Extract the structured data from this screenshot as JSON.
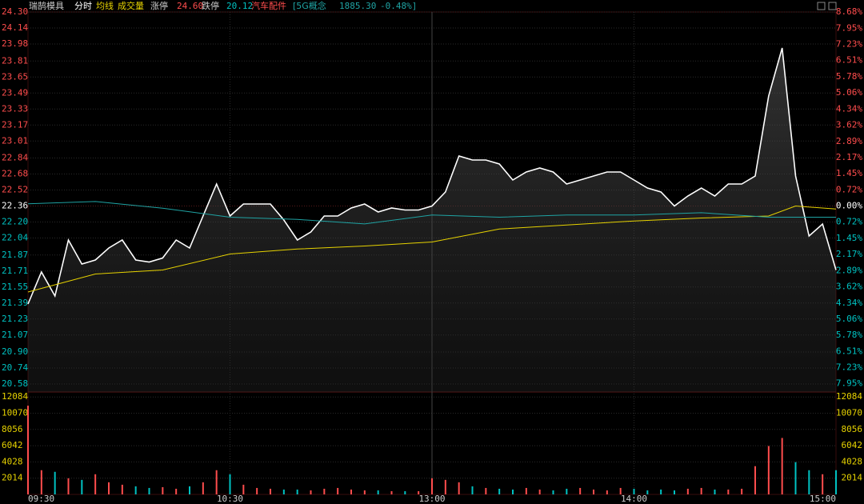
{
  "header": {
    "stock_name": "瑞鹄模具",
    "limit_up_label": "涨停",
    "limit_up": "24.60",
    "limit_down_label": "跌停",
    "limit_down": "20.12",
    "sector": "汽车配件",
    "index_name": "[5G概念",
    "index_value": "1885.30",
    "index_change": "-0.48%]"
  },
  "chart_data": [
    {
      "type": "line",
      "colors": {
        "up": "#ff4d4d",
        "down": "#00c2c2",
        "flat": "#ffffff"
      },
      "grid": true,
      "x": [
        0,
        4,
        8,
        12,
        16,
        20,
        24,
        28,
        32,
        36,
        40,
        44,
        48,
        52,
        56,
        60,
        64,
        68,
        72,
        76,
        80,
        84,
        88,
        92,
        96,
        100,
        104,
        108,
        112,
        116,
        120,
        124,
        128,
        132,
        136,
        140,
        144,
        148,
        152,
        156,
        160,
        164,
        168,
        172,
        176,
        180,
        184,
        188,
        192,
        196,
        200,
        204,
        208,
        212,
        216,
        220,
        224,
        228,
        232,
        236,
        240
      ],
      "xlim": [
        0,
        240
      ],
      "xticks": [
        {
          "value": 0,
          "label": "09:30"
        },
        {
          "value": 60,
          "label": "10:30"
        },
        {
          "value": 120,
          "label": "13:00"
        },
        {
          "value": 180,
          "label": "14:00"
        },
        {
          "value": 240,
          "label": "15:00"
        }
      ],
      "ylim": [
        20.5,
        24.3
      ],
      "yticks": [
        {
          "value": 24.3,
          "label": "24.30"
        },
        24.14,
        23.98,
        23.81,
        23.65,
        23.49,
        23.33,
        23.17,
        23.01,
        22.84,
        22.68,
        22.52,
        22.36,
        {
          "value": 22.2,
          "label": "22.20"
        },
        22.04,
        21.87,
        21.71,
        21.55,
        21.39,
        21.23,
        21.07,
        {
          "value": 20.9,
          "label": "20.90"
        },
        20.74,
        20.58
      ],
      "y2lim": [
        -8.32,
        8.68
      ],
      "y2ticks": [
        {
          "value": 8.68,
          "label": "8.68%"
        },
        {
          "value": 7.95,
          "label": "7.95%"
        },
        {
          "value": 7.23,
          "label": "7.23%"
        },
        {
          "value": 6.51,
          "label": "6.51%"
        },
        {
          "value": 5.78,
          "label": "5.78%"
        },
        {
          "value": 5.06,
          "label": "5.06%"
        },
        {
          "value": 4.34,
          "label": "4.34%"
        },
        {
          "value": 3.62,
          "label": "3.62%"
        },
        {
          "value": 2.89,
          "label": "2.89%"
        },
        {
          "value": 2.17,
          "label": "2.17%"
        },
        {
          "value": 1.45,
          "label": "1.45%"
        },
        {
          "value": 0.72,
          "label": "0.72%"
        },
        {
          "value": 0,
          "label": "0.00%"
        },
        {
          "value": -0.72,
          "label": "0.72%"
        },
        {
          "value": -1.45,
          "label": "1.45%"
        },
        {
          "value": -2.17,
          "label": "2.17%"
        },
        {
          "value": -2.89,
          "label": "2.89%"
        },
        {
          "value": -3.62,
          "label": "3.62%"
        },
        {
          "value": -4.34,
          "label": "4.34%"
        },
        {
          "value": -5.06,
          "label": "5.06%"
        },
        {
          "value": -5.78,
          "label": "5.78%"
        },
        {
          "value": -6.51,
          "label": "6.51%"
        },
        {
          "value": -7.23,
          "label": "7.23%"
        },
        {
          "value": -7.95,
          "label": "7.95%"
        }
      ],
      "series": [
        {
          "name": "分时",
          "color": "#ffffff",
          "values": [
            21.38,
            21.7,
            21.46,
            22.02,
            21.78,
            21.82,
            21.94,
            22.02,
            21.82,
            21.8,
            21.84,
            22.02,
            21.94,
            22.26,
            22.58,
            22.26,
            22.38,
            22.38,
            22.38,
            22.22,
            22.02,
            22.1,
            22.26,
            22.26,
            22.34,
            22.38,
            22.3,
            22.34,
            22.32,
            22.32,
            22.36,
            22.5,
            22.86,
            22.82,
            22.82,
            22.78,
            22.62,
            22.7,
            22.74,
            22.7,
            22.58,
            22.62,
            22.66,
            22.7,
            22.7,
            22.62,
            22.54,
            22.5,
            22.36,
            22.46,
            22.54,
            22.46,
            22.58,
            22.58,
            22.66,
            23.46,
            23.94,
            22.66,
            22.06,
            22.18,
            21.72
          ]
        },
        {
          "name": "均线",
          "color": "#e6d200",
          "x": [
            0,
            20,
            40,
            60,
            80,
            100,
            120,
            140,
            160,
            180,
            200,
            220,
            228,
            240
          ],
          "values": [
            21.5,
            21.68,
            21.72,
            21.88,
            21.93,
            21.96,
            22.0,
            22.13,
            22.17,
            22.21,
            22.24,
            22.26,
            22.36,
            22.33
          ]
        },
        {
          "color": "#1fa3a3",
          "axis": "y2",
          "x": [
            0,
            20,
            40,
            60,
            80,
            100,
            120,
            140,
            160,
            180,
            200,
            220,
            240
          ],
          "values": [
            0.1,
            0.2,
            -0.1,
            -0.5,
            -0.6,
            -0.8,
            -0.4,
            -0.5,
            -0.4,
            -0.4,
            -0.3,
            -0.5,
            -0.5
          ]
        }
      ]
    },
    {
      "type": "bar",
      "title": "成交量",
      "x": [
        0,
        4,
        8,
        12,
        16,
        20,
        24,
        28,
        32,
        36,
        40,
        44,
        48,
        52,
        56,
        60,
        64,
        68,
        72,
        76,
        80,
        84,
        88,
        92,
        96,
        100,
        104,
        108,
        112,
        116,
        120,
        124,
        128,
        132,
        136,
        140,
        144,
        148,
        152,
        156,
        160,
        164,
        168,
        172,
        176,
        180,
        184,
        188,
        192,
        196,
        200,
        204,
        208,
        212,
        216,
        220,
        224,
        228,
        232,
        236,
        240
      ],
      "xlim": [
        0,
        240
      ],
      "ylim": [
        0,
        12700
      ],
      "yticks": [
        12084,
        10070,
        8056,
        6042,
        4028,
        2014
      ],
      "values": [
        11000,
        3000,
        2800,
        2000,
        1800,
        2500,
        1500,
        1200,
        1000,
        800,
        900,
        700,
        1000,
        1500,
        3000,
        2500,
        1200,
        800,
        700,
        600,
        600,
        500,
        700,
        800,
        600,
        500,
        500,
        400,
        400,
        400,
        2000,
        1800,
        1500,
        1000,
        800,
        700,
        600,
        800,
        600,
        500,
        700,
        800,
        600,
        500,
        800,
        700,
        500,
        600,
        500,
        700,
        800,
        600,
        600,
        700,
        3500,
        6000,
        7000,
        4000,
        3000,
        2500,
        3000
      ]
    }
  ]
}
